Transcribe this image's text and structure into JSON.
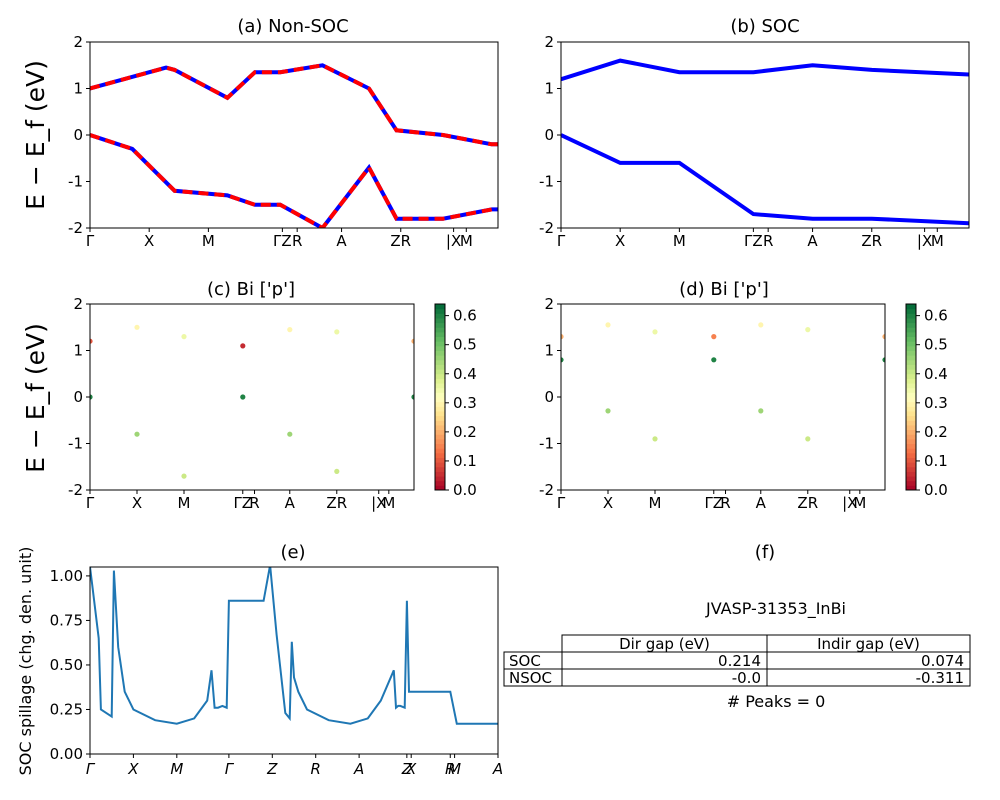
{
  "figure": {
    "ylabel_main": "E − E_f (eV)",
    "colors": {
      "blue": "#0000ff",
      "red": "#ff0000",
      "spillage": "#1f77b4"
    }
  },
  "chart_data": [
    {
      "id": "a",
      "type": "line",
      "title": "(a) Non-SOC",
      "ylim": [
        -2,
        2
      ],
      "yticks": [
        "-2",
        "-1",
        "0",
        "1",
        "2"
      ],
      "kpath_labels": [
        "Γ",
        "X",
        "M",
        "ΓZ",
        "R",
        "A",
        "ZR",
        "|X",
        "M"
      ],
      "series": [
        {
          "style": "solid blue with dashed red overlay",
          "x": [
            0,
            3.6,
            4.0,
            6.5,
            7.8,
            9.0,
            11.0,
            13.2,
            14.5,
            16.7,
            19.0,
            21.0
          ],
          "y": [
            1.0,
            1.45,
            1.4,
            0.8,
            1.35,
            1.35,
            1.5,
            1.0,
            0.1,
            0.0,
            -0.2,
            -0.2
          ]
        },
        {
          "style": "solid blue with dashed red overlay",
          "x": [
            0,
            2.0,
            4.0,
            6.5,
            7.8,
            9.0,
            11.0,
            13.2,
            14.5,
            16.7,
            19.0,
            21.0
          ],
          "y": [
            0.0,
            -0.3,
            -1.2,
            -1.3,
            -1.5,
            -1.5,
            -2.0,
            -0.7,
            -1.8,
            -1.8,
            -1.6,
            -1.6
          ]
        }
      ]
    },
    {
      "id": "b",
      "type": "line",
      "title": "(b) SOC",
      "ylim": [
        -2,
        2
      ],
      "yticks": [
        "-2",
        "-1",
        "0",
        "1",
        "2"
      ],
      "kpath_labels": [
        "Γ",
        "X",
        "M",
        "ΓZ",
        "R",
        "A",
        "ZR",
        "|X",
        "M"
      ],
      "series": [
        {
          "x": [
            0,
            2.8,
            5.6,
            9.1,
            11.9,
            14.7,
            19.3
          ],
          "y": [
            1.2,
            1.6,
            1.35,
            1.35,
            1.5,
            1.4,
            1.3
          ]
        },
        {
          "x": [
            0,
            2.8,
            5.6,
            9.1,
            11.9,
            14.7,
            19.3
          ],
          "y": [
            0.0,
            -0.6,
            -0.6,
            -1.7,
            -1.8,
            -1.8,
            -1.9
          ]
        }
      ]
    },
    {
      "id": "c",
      "type": "scatter",
      "title": "(c)  Bi ['p']",
      "ylim": [
        -2,
        2
      ],
      "yticks": [
        "-2",
        "-1",
        "0",
        "1",
        "2"
      ],
      "kpath_labels": [
        "Γ",
        "X",
        "M",
        "ΓZ",
        "R",
        "A",
        "ZR",
        "|X",
        "M"
      ],
      "colorbar": {
        "ticks": [
          "0.0",
          "0.1",
          "0.2",
          "0.3",
          "0.4",
          "0.5",
          "0.6"
        ],
        "range": [
          0,
          0.64
        ],
        "colormap": "RdYlGn"
      },
      "points_note": "projected band weight shown as color",
      "series": [
        {
          "x": [
            0,
            2.8,
            5.6,
            9.1,
            11.9,
            14.7,
            19.3
          ],
          "y": [
            0.0,
            -0.8,
            -1.7,
            0.0,
            -0.8,
            -1.6,
            0.0
          ],
          "c": [
            0.6,
            0.45,
            0.4,
            0.6,
            0.45,
            0.4,
            0.6
          ]
        },
        {
          "x": [
            0,
            2.8,
            5.6,
            9.1,
            11.9,
            14.7,
            19.3
          ],
          "y": [
            1.2,
            1.5,
            1.3,
            1.1,
            1.45,
            1.4,
            1.2
          ],
          "c": [
            0.1,
            0.3,
            0.35,
            0.05,
            0.3,
            0.35,
            0.2
          ]
        }
      ]
    },
    {
      "id": "d",
      "type": "scatter",
      "title": "(d) Bi ['p']",
      "ylim": [
        -2,
        2
      ],
      "yticks": [
        "-2",
        "-1",
        "0",
        "1",
        "2"
      ],
      "kpath_labels": [
        "Γ",
        "X",
        "M",
        "ΓZ",
        "R",
        "A",
        "ZR",
        "|X",
        "M"
      ],
      "colorbar": {
        "ticks": [
          "0.0",
          "0.1",
          "0.2",
          "0.3",
          "0.4",
          "0.5",
          "0.6"
        ],
        "range": [
          0,
          0.64
        ],
        "colormap": "RdYlGn"
      },
      "series": [
        {
          "x": [
            0,
            2.8,
            5.6,
            9.1,
            11.9,
            14.7,
            19.3
          ],
          "y": [
            0.8,
            -0.3,
            -0.9,
            0.8,
            -0.3,
            -0.9,
            0.8
          ],
          "c": [
            0.6,
            0.45,
            0.4,
            0.6,
            0.45,
            0.4,
            0.6
          ]
        },
        {
          "x": [
            0,
            2.8,
            5.6,
            9.1,
            11.9,
            14.7,
            19.3
          ],
          "y": [
            1.3,
            1.55,
            1.4,
            1.3,
            1.55,
            1.45,
            1.3
          ],
          "c": [
            0.2,
            0.3,
            0.35,
            0.15,
            0.3,
            0.35,
            0.2
          ]
        }
      ]
    },
    {
      "id": "e",
      "type": "line",
      "title": "(e)",
      "ylabel": "SOC spillage (chg. den. unit)",
      "ylim": [
        0,
        1.05
      ],
      "yticks": [
        "0.00",
        "0.25",
        "0.50",
        "0.75",
        "1.00"
      ],
      "xticks": [
        "Γ",
        "X",
        "M",
        "Γ",
        "Z",
        "R",
        "A",
        "Z",
        "X",
        "R",
        "M",
        "A"
      ],
      "xtick_pos": [
        0,
        1,
        2,
        3.2,
        4.2,
        5.2,
        6.2,
        7.3,
        7.4,
        8.3,
        8.4,
        9.4
      ],
      "x": [
        0,
        0.05,
        0.2,
        0.25,
        0.5,
        0.55,
        0.65,
        0.8,
        1.0,
        1.5,
        2.0,
        2.4,
        2.7,
        2.8,
        2.87,
        2.95,
        3.05,
        3.15,
        3.2,
        3.3,
        4.0,
        4.15,
        4.3,
        4.5,
        4.6,
        4.65,
        4.7,
        4.8,
        5.0,
        5.5,
        6.0,
        6.4,
        6.7,
        7.0,
        7.05,
        7.1,
        7.15,
        7.25,
        7.3,
        7.35,
        7.4,
        7.5,
        8.0,
        8.3,
        8.45,
        9.0,
        9.4
      ],
      "y": [
        1.05,
        0.95,
        0.65,
        0.25,
        0.21,
        1.03,
        0.6,
        0.35,
        0.25,
        0.19,
        0.17,
        0.2,
        0.3,
        0.47,
        0.26,
        0.26,
        0.27,
        0.26,
        0.86,
        0.86,
        0.86,
        1.06,
        0.67,
        0.23,
        0.2,
        0.63,
        0.43,
        0.35,
        0.25,
        0.19,
        0.17,
        0.2,
        0.3,
        0.47,
        0.26,
        0.27,
        0.27,
        0.26,
        0.86,
        0.35,
        0.35,
        0.35,
        0.35,
        0.35,
        0.17,
        0.17,
        0.17
      ]
    },
    {
      "id": "f",
      "type": "table",
      "title": "(f)",
      "subtitle": "JVASP-31353_InBi",
      "columns": [
        "",
        "Dir gap (eV)",
        "Indir gap (eV)"
      ],
      "rows": [
        [
          "SOC",
          "0.214",
          "0.074"
        ],
        [
          "NSOC",
          "-0.0",
          "-0.311"
        ]
      ],
      "footer": "# Peaks = 0"
    }
  ]
}
